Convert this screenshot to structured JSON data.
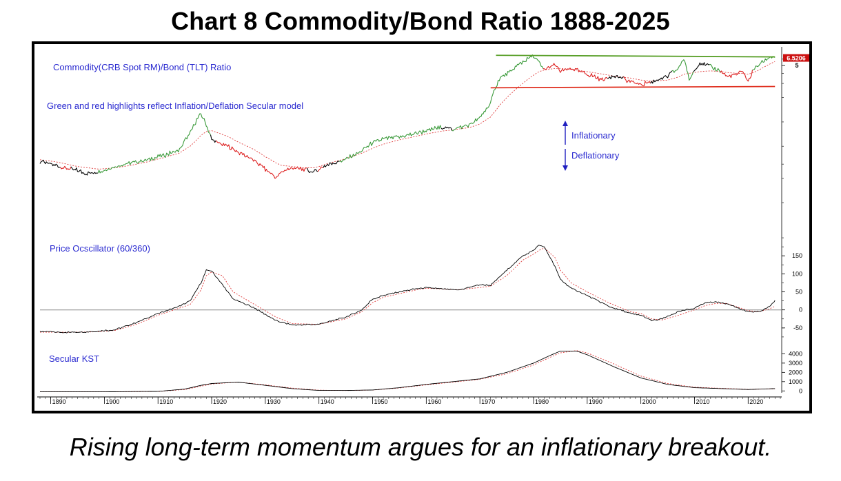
{
  "title": "Chart 8 Commodity/Bond Ratio 1888-2025",
  "caption": "Rising long-term momentum argues for an inflationary breakout.",
  "colors": {
    "inflation": "#3a9a3a",
    "deflation": "#dd2020",
    "neutral": "#000000",
    "average": "#e04040",
    "annotation": "#2a2ad0",
    "upper_trendline": "#5aa02a",
    "lower_trendline": "#e03020",
    "arrow": "#2020c0"
  },
  "chart_data": [
    {
      "type": "line",
      "panel": "ratio",
      "labels": [
        "Commodity(CRB Spot RM)/Bond (TLT) Ratio",
        "Green and red highlights reflect Inflation/Deflation Secular model"
      ],
      "scale": "log",
      "ylim": [
        0.06,
        7
      ],
      "yticks": [
        5
      ],
      "last_value_label": "6.5206",
      "legend_arrows": {
        "up": "Inflationary",
        "down": "Deflationary"
      },
      "x": [
        1888,
        1891,
        1893,
        1895,
        1897,
        1899,
        1902,
        1905,
        1908,
        1911,
        1914,
        1916,
        1917,
        1918,
        1919,
        1920,
        1921,
        1923,
        1925,
        1928,
        1930,
        1932,
        1933,
        1935,
        1937,
        1939,
        1940,
        1942,
        1945,
        1948,
        1950,
        1952,
        1955,
        1958,
        1960,
        1963,
        1965,
        1968,
        1970,
        1972,
        1973,
        1974,
        1976,
        1978,
        1980,
        1981,
        1982,
        1984,
        1985,
        1987,
        1990,
        1993,
        1995,
        1998,
        2000,
        2002,
        2005,
        2007,
        2008,
        2009,
        2011,
        2013,
        2015,
        2016,
        2018,
        2019,
        2020,
        2021,
        2022,
        2024,
        2025
      ],
      "series": [
        {
          "values": [
            0.32,
            0.29,
            0.27,
            0.25,
            0.23,
            0.24,
            0.28,
            0.31,
            0.34,
            0.38,
            0.45,
            0.72,
            1.0,
            1.25,
            0.9,
            0.6,
            0.55,
            0.5,
            0.42,
            0.33,
            0.26,
            0.2,
            0.24,
            0.27,
            0.26,
            0.24,
            0.26,
            0.3,
            0.34,
            0.44,
            0.55,
            0.62,
            0.65,
            0.72,
            0.78,
            0.86,
            0.82,
            0.92,
            1.1,
            1.7,
            2.8,
            3.6,
            4.3,
            5.6,
            6.5,
            5.4,
            4.4,
            5.1,
            4.2,
            4.6,
            3.9,
            3.3,
            3.8,
            3.2,
            2.9,
            3.1,
            3.7,
            4.6,
            6.2,
            3.2,
            5.5,
            4.8,
            4.3,
            3.6,
            3.9,
            4.2,
            3.1,
            4.5,
            5.1,
            6.3,
            6.52
          ]
        },
        {
          "values": [
            0.34,
            0.32,
            0.3,
            0.28,
            0.27,
            0.26,
            0.27,
            0.29,
            0.32,
            0.36,
            0.41,
            0.5,
            0.58,
            0.68,
            0.76,
            0.78,
            0.74,
            0.66,
            0.56,
            0.45,
            0.37,
            0.31,
            0.29,
            0.28,
            0.27,
            0.27,
            0.28,
            0.31,
            0.35,
            0.41,
            0.47,
            0.53,
            0.6,
            0.66,
            0.71,
            0.77,
            0.8,
            0.85,
            0.94,
            1.15,
            1.4,
            1.7,
            2.3,
            3.0,
            3.8,
            4.2,
            4.4,
            4.6,
            4.6,
            4.5,
            4.2,
            3.9,
            3.7,
            3.5,
            3.3,
            3.2,
            3.3,
            3.6,
            3.9,
            4.0,
            4.2,
            4.3,
            4.2,
            4.1,
            4.0,
            4.0,
            3.9,
            4.1,
            4.4,
            5.2,
            5.6
          ]
        }
      ],
      "trendlines": {
        "upper": {
          "x": [
            1973,
            2025
          ],
          "values": [
            6.7,
            6.4
          ]
        },
        "lower": {
          "x": [
            1972,
            2025
          ],
          "values": [
            2.65,
            2.75
          ]
        }
      },
      "regimes": [
        {
          "from": 1888,
          "to": 1892,
          "state": "neutral"
        },
        {
          "from": 1892,
          "to": 1894,
          "state": "deflation"
        },
        {
          "from": 1894,
          "to": 1899,
          "state": "neutral"
        },
        {
          "from": 1899,
          "to": 1920,
          "state": "inflation"
        },
        {
          "from": 1920,
          "to": 1921,
          "state": "neutral"
        },
        {
          "from": 1921,
          "to": 1938,
          "state": "deflation"
        },
        {
          "from": 1938,
          "to": 1940,
          "state": "neutral"
        },
        {
          "from": 1940,
          "to": 1941,
          "state": "deflation"
        },
        {
          "from": 1941,
          "to": 1944,
          "state": "neutral"
        },
        {
          "from": 1944,
          "to": 1963,
          "state": "inflation"
        },
        {
          "from": 1963,
          "to": 1965,
          "state": "neutral"
        },
        {
          "from": 1965,
          "to": 1982,
          "state": "inflation"
        },
        {
          "from": 1982,
          "to": 1994,
          "state": "deflation"
        },
        {
          "from": 1994,
          "to": 1997,
          "state": "neutral"
        },
        {
          "from": 1997,
          "to": 2002,
          "state": "deflation"
        },
        {
          "from": 2002,
          "to": 2006,
          "state": "neutral"
        },
        {
          "from": 2006,
          "to": 2010,
          "state": "inflation"
        },
        {
          "from": 2010,
          "to": 2013,
          "state": "neutral"
        },
        {
          "from": 2013,
          "to": 2015,
          "state": "inflation"
        },
        {
          "from": 2015,
          "to": 2021,
          "state": "deflation"
        },
        {
          "from": 2021,
          "to": 2025,
          "state": "inflation"
        }
      ]
    },
    {
      "type": "line",
      "panel": "oscillator",
      "label": "Price Ocscillator (60/360)",
      "ylim": [
        -100,
        225
      ],
      "yticks": [
        150,
        100,
        50,
        0,
        -50
      ],
      "reference_line": 0,
      "x": [
        1888,
        1893,
        1898,
        1902,
        1906,
        1910,
        1914,
        1916,
        1918,
        1919,
        1920,
        1922,
        1924,
        1928,
        1932,
        1935,
        1940,
        1945,
        1948,
        1950,
        1952,
        1955,
        1958,
        1960,
        1963,
        1966,
        1970,
        1972,
        1975,
        1978,
        1980,
        1981,
        1982,
        1984,
        1985,
        1987,
        1990,
        1994,
        1998,
        2000,
        2002,
        2004,
        2007,
        2010,
        2012,
        2014,
        2016,
        2018,
        2020,
        2022,
        2024,
        2025
      ],
      "series": [
        {
          "values": [
            -60,
            -62,
            -60,
            -55,
            -35,
            -10,
            10,
            25,
            75,
            110,
            108,
            70,
            30,
            5,
            -30,
            -42,
            -40,
            -20,
            0,
            30,
            40,
            50,
            58,
            62,
            58,
            55,
            70,
            68,
            110,
            150,
            165,
            180,
            175,
            120,
            85,
            60,
            40,
            10,
            -10,
            -15,
            -30,
            -25,
            -5,
            5,
            20,
            22,
            18,
            5,
            -5,
            -5,
            10,
            25
          ]
        },
        {
          "values": [
            -62,
            -62,
            -61,
            -57,
            -40,
            -15,
            5,
            15,
            55,
            95,
            105,
            95,
            50,
            15,
            -20,
            -38,
            -40,
            -25,
            -5,
            20,
            35,
            45,
            55,
            60,
            58,
            56,
            62,
            66,
            95,
            138,
            155,
            165,
            172,
            145,
            110,
            75,
            50,
            20,
            -5,
            -10,
            -25,
            -28,
            -15,
            0,
            12,
            18,
            18,
            8,
            -2,
            -5,
            3,
            10
          ]
        }
      ]
    },
    {
      "type": "line",
      "panel": "kst",
      "label": "Secular KST",
      "ylim": [
        -500,
        4700
      ],
      "yticks": [
        4000,
        3000,
        2000,
        1000,
        0
      ],
      "x": [
        1888,
        1900,
        1910,
        1915,
        1918,
        1920,
        1925,
        1930,
        1935,
        1940,
        1945,
        1950,
        1955,
        1960,
        1965,
        1970,
        1975,
        1980,
        1983,
        1985,
        1988,
        1990,
        1995,
        2000,
        2005,
        2010,
        2015,
        2020,
        2025
      ],
      "series": [
        {
          "values": [
            -100,
            -100,
            -50,
            200,
            600,
            800,
            950,
            600,
            250,
            50,
            50,
            100,
            350,
            700,
            1000,
            1300,
            2000,
            3000,
            3800,
            4300,
            4300,
            3900,
            2600,
            1400,
            700,
            350,
            250,
            150,
            250
          ]
        },
        {
          "values": [
            -100,
            -100,
            -60,
            150,
            500,
            750,
            950,
            650,
            300,
            80,
            40,
            90,
            320,
            650,
            950,
            1250,
            1850,
            2800,
            3600,
            4100,
            4350,
            4100,
            2900,
            1600,
            800,
            400,
            280,
            170,
            230
          ]
        }
      ]
    },
    {
      "type": "line",
      "panel": "x-axis",
      "xlabel": "",
      "xlim": [
        1888,
        2026
      ],
      "xticks": [
        1890,
        1900,
        1910,
        1920,
        1930,
        1940,
        1950,
        1960,
        1970,
        1980,
        1990,
        2000,
        2010,
        2020
      ]
    }
  ]
}
